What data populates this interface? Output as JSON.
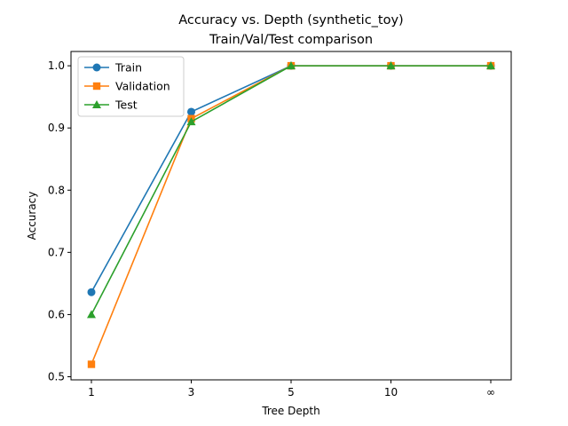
{
  "chart_data": {
    "type": "line",
    "title": "Accuracy vs. Depth (synthetic_toy)",
    "subtitle": "Train/Val/Test comparison",
    "xlabel": "Tree Depth",
    "ylabel": "Accuracy",
    "categories": [
      "1",
      "3",
      "5",
      "10",
      "∞"
    ],
    "ylim": [
      0.495,
      1.023
    ],
    "yticks": [
      "0.5",
      "0.6",
      "0.7",
      "0.8",
      "0.9",
      "1.0"
    ],
    "grid": false,
    "legend_position": "top-left",
    "series": [
      {
        "name": "Train",
        "color": "#1f77b4",
        "marker": "circle",
        "values": [
          0.636,
          0.926,
          1.0,
          1.0,
          1.0
        ]
      },
      {
        "name": "Validation",
        "color": "#ff7f0e",
        "marker": "square",
        "values": [
          0.52,
          0.915,
          1.0,
          1.0,
          1.0
        ]
      },
      {
        "name": "Test",
        "color": "#2ca02c",
        "marker": "triangle",
        "values": [
          0.6,
          0.91,
          1.0,
          1.0,
          1.0
        ]
      }
    ]
  }
}
